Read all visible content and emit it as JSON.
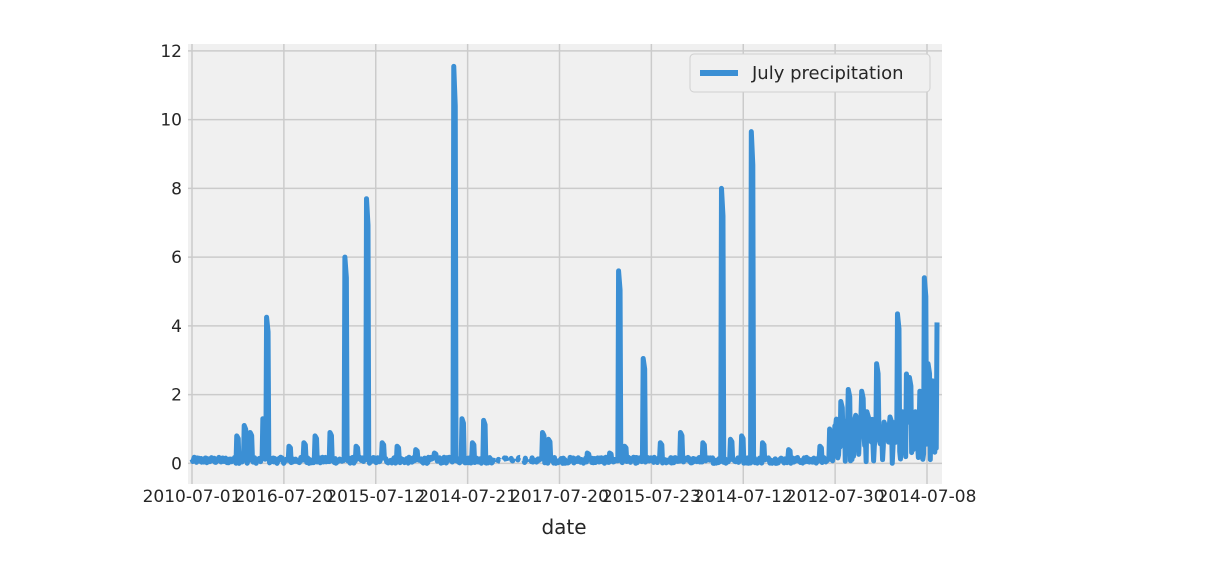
{
  "chart_data": {
    "type": "line",
    "title": "",
    "xlabel": "date",
    "ylabel": "",
    "ylim": [
      -0.6,
      12.2
    ],
    "yticks": [
      0,
      2,
      4,
      6,
      8,
      10,
      12
    ],
    "grid": true,
    "legend_placement": "top-right",
    "accent_color": "#3b8fd4",
    "background_color": "#f0f0f0",
    "grid_color": "#cbcbcb",
    "xtick_labels": [
      "2010-07-01",
      "2016-07-20",
      "2015-07-12",
      "2014-07-21",
      "2017-07-20",
      "2015-07-23",
      "2014-07-12",
      "2012-07-30",
      "2014-07-08"
    ],
    "x_count": 1000,
    "series": [
      {
        "name": "July precipitation",
        "color": "#3b8fd4",
        "spikes": [
          {
            "x": 60,
            "y": 0.8
          },
          {
            "x": 70,
            "y": 1.1
          },
          {
            "x": 78,
            "y": 0.9
          },
          {
            "x": 95,
            "y": 1.3
          },
          {
            "x": 100,
            "y": 4.25
          },
          {
            "x": 130,
            "y": 0.5
          },
          {
            "x": 150,
            "y": 0.6
          },
          {
            "x": 165,
            "y": 0.8
          },
          {
            "x": 185,
            "y": 0.9
          },
          {
            "x": 205,
            "y": 6.0
          },
          {
            "x": 220,
            "y": 0.5
          },
          {
            "x": 234,
            "y": 7.7
          },
          {
            "x": 255,
            "y": 0.6
          },
          {
            "x": 275,
            "y": 0.5
          },
          {
            "x": 300,
            "y": 0.4
          },
          {
            "x": 325,
            "y": 0.3
          },
          {
            "x": 351,
            "y": 11.55
          },
          {
            "x": 362,
            "y": 1.3
          },
          {
            "x": 376,
            "y": 0.6
          },
          {
            "x": 391,
            "y": 1.25
          },
          {
            "x": 470,
            "y": 0.9
          },
          {
            "x": 478,
            "y": 0.7
          },
          {
            "x": 530,
            "y": 0.3
          },
          {
            "x": 560,
            "y": 0.3
          },
          {
            "x": 572,
            "y": 5.6
          },
          {
            "x": 580,
            "y": 0.5
          },
          {
            "x": 605,
            "y": 3.05
          },
          {
            "x": 628,
            "y": 0.6
          },
          {
            "x": 655,
            "y": 0.9
          },
          {
            "x": 685,
            "y": 0.6
          },
          {
            "x": 710,
            "y": 8.0
          },
          {
            "x": 722,
            "y": 0.7
          },
          {
            "x": 737,
            "y": 0.8
          },
          {
            "x": 750,
            "y": 9.65
          },
          {
            "x": 765,
            "y": 0.6
          },
          {
            "x": 800,
            "y": 0.4
          },
          {
            "x": 842,
            "y": 0.5
          },
          {
            "x": 855,
            "y": 1.0
          },
          {
            "x": 870,
            "y": 1.8
          },
          {
            "x": 880,
            "y": 2.15
          },
          {
            "x": 890,
            "y": 1.4
          },
          {
            "x": 898,
            "y": 2.1
          },
          {
            "x": 905,
            "y": 1.5
          },
          {
            "x": 918,
            "y": 2.9
          },
          {
            "x": 928,
            "y": 1.2
          },
          {
            "x": 936,
            "y": 1.35
          },
          {
            "x": 946,
            "y": 4.35
          },
          {
            "x": 953,
            "y": 1.5
          },
          {
            "x": 958,
            "y": 2.6
          },
          {
            "x": 962,
            "y": 2.5
          },
          {
            "x": 970,
            "y": 1.5
          },
          {
            "x": 976,
            "y": 2.1
          },
          {
            "x": 982,
            "y": 5.4
          },
          {
            "x": 987,
            "y": 2.9
          },
          {
            "x": 993,
            "y": 2.4
          },
          {
            "x": 999,
            "y": 4.1
          }
        ],
        "dense_region_start": 860
      }
    ]
  }
}
